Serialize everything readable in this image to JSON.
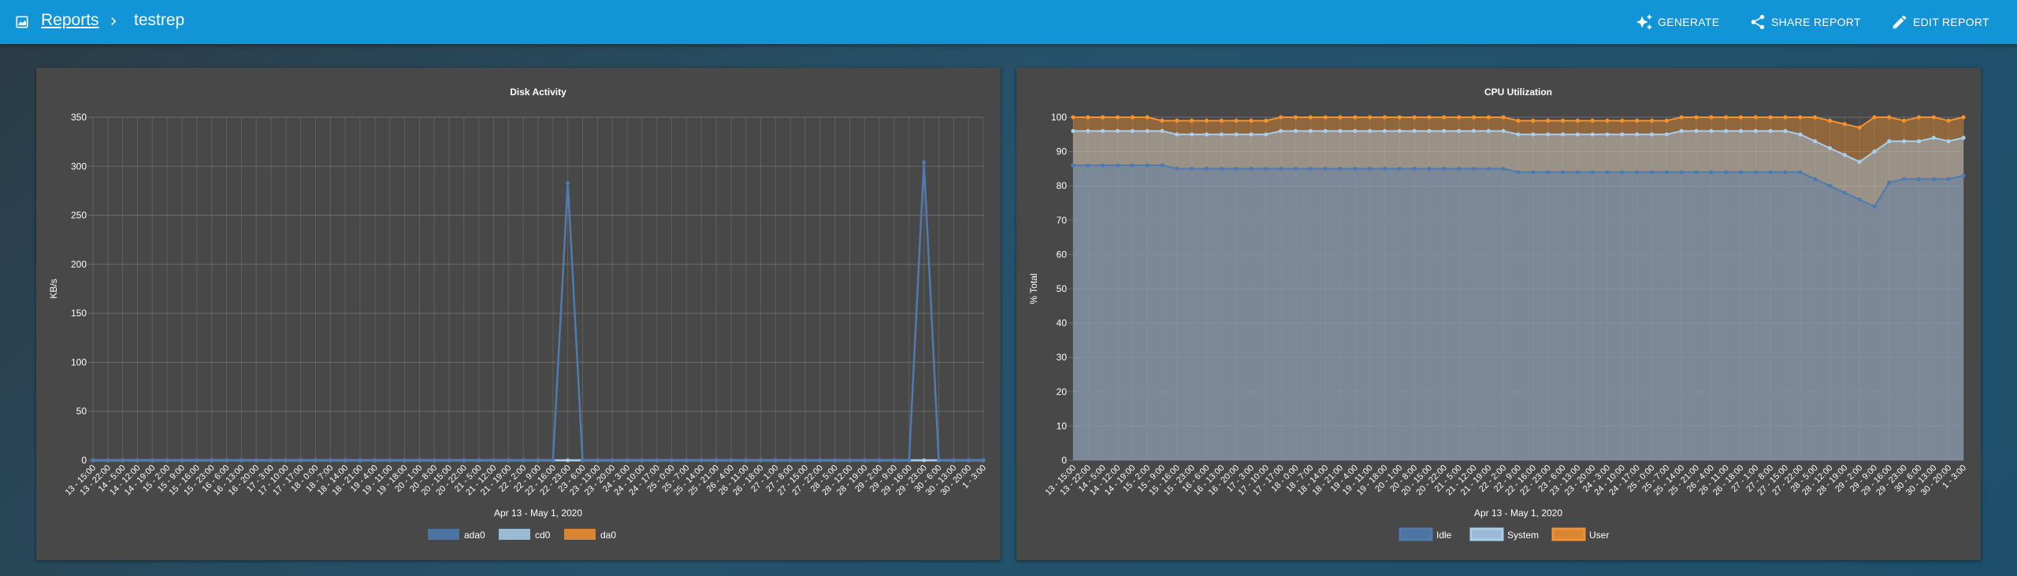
{
  "header": {
    "breadcrumb_root": "Reports",
    "breadcrumb_current": "testrep",
    "actions": {
      "generate": "GENERATE",
      "share": "SHARE REPORT",
      "edit": "EDIT REPORT"
    }
  },
  "x_labels": [
    "13 - 15:00",
    "13 - 22:00",
    "14 - 5:00",
    "14 - 12:00",
    "14 - 19:00",
    "15 - 2:00",
    "15 - 9:00",
    "15 - 16:00",
    "15 - 23:00",
    "16 - 6:00",
    "16 - 13:00",
    "16 - 20:00",
    "17 - 3:00",
    "17 - 10:00",
    "17 - 17:00",
    "18 - 0:00",
    "18 - 7:00",
    "18 - 14:00",
    "18 - 21:00",
    "19 - 4:00",
    "19 - 11:00",
    "19 - 18:00",
    "20 - 1:00",
    "20 - 8:00",
    "20 - 15:00",
    "20 - 22:00",
    "21 - 5:00",
    "21 - 12:00",
    "21 - 19:00",
    "22 - 2:00",
    "22 - 9:00",
    "22 - 16:00",
    "22 - 23:00",
    "23 - 6:00",
    "23 - 13:00",
    "23 - 20:00",
    "24 - 3:00",
    "24 - 10:00",
    "24 - 17:00",
    "25 - 0:00",
    "25 - 7:00",
    "25 - 14:00",
    "25 - 21:00",
    "26 - 4:00",
    "26 - 11:00",
    "26 - 18:00",
    "27 - 1:00",
    "27 - 8:00",
    "27 - 15:00",
    "27 - 22:00",
    "28 - 5:00",
    "28 - 12:00",
    "28 - 19:00",
    "29 - 2:00",
    "29 - 9:00",
    "29 - 16:00",
    "29 - 23:00",
    "30 - 6:00",
    "30 - 13:00",
    "30 - 20:00",
    "1 - 3:00"
  ],
  "chart_data": [
    {
      "type": "line",
      "title": "Disk Activity",
      "xlabel": "Apr 13 - May 1, 2020",
      "ylabel": "KB/s",
      "ylim": [
        0,
        350
      ],
      "yticks": [
        0,
        50,
        100,
        150,
        200,
        250,
        300,
        350
      ],
      "grid": true,
      "legend_position": "bottom",
      "series": [
        {
          "name": "ada0",
          "color": "#4f7bb0",
          "values": [
            0,
            0,
            0,
            0,
            0,
            0,
            0,
            0,
            0,
            0,
            0,
            0,
            0,
            0,
            0,
            0,
            0,
            0,
            0,
            0,
            0,
            0,
            0,
            0,
            0,
            0,
            0,
            0,
            0,
            0,
            0,
            0,
            283,
            0,
            0,
            0,
            0,
            0,
            0,
            0,
            0,
            0,
            0,
            0,
            0,
            0,
            0,
            0,
            0,
            0,
            0,
            0,
            0,
            0,
            0,
            0,
            304,
            0,
            0,
            0,
            0
          ]
        },
        {
          "name": "cd0",
          "color": "#a9cfee",
          "values": [
            0,
            0,
            0,
            0,
            0,
            0,
            0,
            0,
            0,
            0,
            0,
            0,
            0,
            0,
            0,
            0,
            0,
            0,
            0,
            0,
            0,
            0,
            0,
            0,
            0,
            0,
            0,
            0,
            0,
            0,
            0,
            0,
            0,
            0,
            0,
            0,
            0,
            0,
            0,
            0,
            0,
            0,
            0,
            0,
            0,
            0,
            0,
            0,
            0,
            0,
            0,
            0,
            0,
            0,
            0,
            0,
            0,
            0,
            0,
            0,
            0
          ]
        },
        {
          "name": "da0",
          "color": "#f5912f",
          "values": [
            0,
            0,
            0,
            0,
            0,
            0,
            0,
            0,
            0,
            0,
            0,
            0,
            0,
            0,
            0,
            0,
            0,
            0,
            0,
            0,
            0,
            0,
            0,
            0,
            0,
            0,
            0,
            0,
            0,
            0,
            0,
            0,
            0,
            0,
            0,
            0,
            0,
            0,
            0,
            0,
            0,
            0,
            0,
            0,
            0,
            0,
            0,
            0,
            0,
            0,
            0,
            0,
            0,
            0,
            0,
            0,
            0,
            0,
            0,
            0,
            0
          ]
        }
      ]
    },
    {
      "type": "area",
      "title": "CPU Utilization",
      "xlabel": "Apr 13 - May 1, 2020",
      "ylabel": "% Total",
      "ylim": [
        0,
        100
      ],
      "yticks": [
        0,
        10,
        20,
        30,
        40,
        50,
        60,
        70,
        80,
        90,
        100
      ],
      "stacked": true,
      "grid": true,
      "legend_position": "bottom",
      "series": [
        {
          "name": "Idle",
          "color": "#4f7bb0",
          "values": [
            86,
            86,
            86,
            86,
            86,
            86,
            86,
            85,
            85,
            85,
            85,
            85,
            85,
            85,
            85,
            85,
            85,
            85,
            85,
            85,
            85,
            85,
            85,
            85,
            85,
            85,
            85,
            85,
            85,
            85,
            84,
            84,
            84,
            84,
            84,
            84,
            84,
            84,
            84,
            84,
            84,
            84,
            84,
            84,
            84,
            84,
            84,
            84,
            84,
            84,
            82,
            80,
            78,
            76,
            74,
            81,
            82,
            82,
            82,
            82,
            83
          ]
        },
        {
          "name": "System",
          "color": "#a9cfee",
          "values": [
            10,
            10,
            10,
            10,
            10,
            10,
            10,
            10,
            10,
            10,
            10,
            10,
            10,
            10,
            11,
            11,
            11,
            11,
            11,
            11,
            11,
            11,
            11,
            11,
            11,
            11,
            11,
            11,
            11,
            11,
            11,
            11,
            11,
            11,
            11,
            11,
            11,
            11,
            11,
            11,
            11,
            12,
            12,
            12,
            12,
            12,
            12,
            12,
            12,
            11,
            11,
            11,
            11,
            11,
            16,
            12,
            11,
            11,
            12,
            11,
            11
          ]
        },
        {
          "name": "User",
          "color": "#f5912f",
          "values": [
            4,
            4,
            4,
            4,
            4,
            4,
            3,
            4,
            4,
            4,
            4,
            4,
            4,
            4,
            4,
            4,
            4,
            4,
            4,
            4,
            4,
            4,
            4,
            4,
            4,
            4,
            4,
            4,
            4,
            4,
            4,
            4,
            4,
            4,
            4,
            4,
            4,
            4,
            4,
            4,
            4,
            4,
            4,
            4,
            4,
            4,
            4,
            4,
            4,
            5,
            7,
            8,
            9,
            10,
            10,
            7,
            6,
            7,
            6,
            6,
            6
          ]
        }
      ]
    }
  ]
}
